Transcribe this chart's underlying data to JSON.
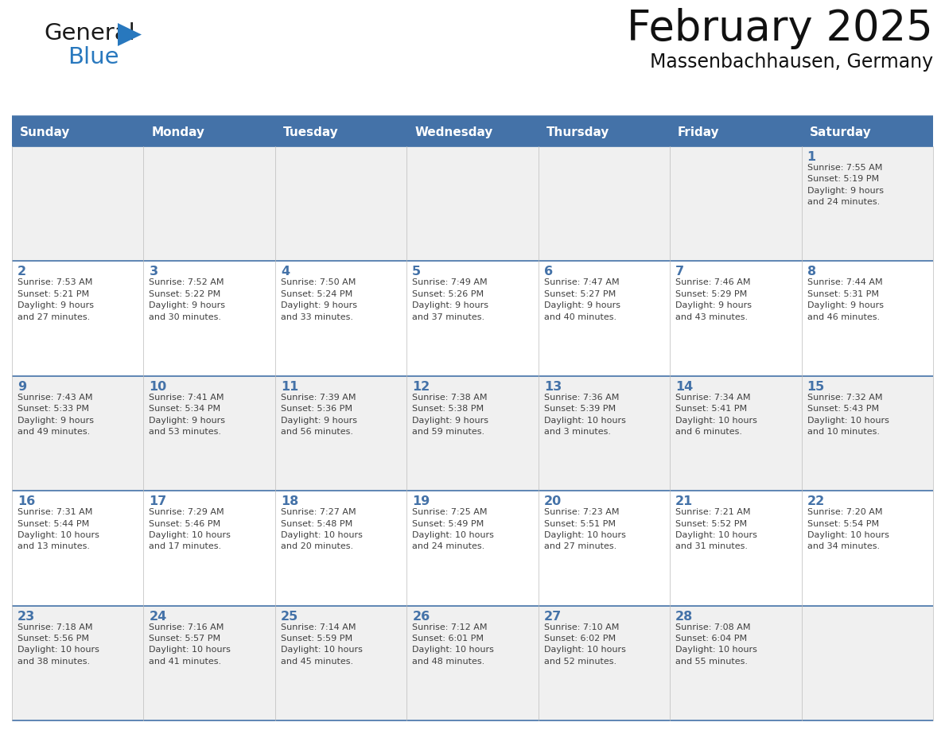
{
  "title": "February 2025",
  "subtitle": "Massenbachhausen, Germany",
  "header_bg": "#4472A8",
  "header_text_color": "#FFFFFF",
  "cell_bg_odd": "#F0F0F0",
  "cell_bg_even": "#FFFFFF",
  "day_number_color": "#4472A8",
  "info_text_color": "#404040",
  "days_of_week": [
    "Sunday",
    "Monday",
    "Tuesday",
    "Wednesday",
    "Thursday",
    "Friday",
    "Saturday"
  ],
  "weeks": [
    [
      {
        "day": null,
        "info": null
      },
      {
        "day": null,
        "info": null
      },
      {
        "day": null,
        "info": null
      },
      {
        "day": null,
        "info": null
      },
      {
        "day": null,
        "info": null
      },
      {
        "day": null,
        "info": null
      },
      {
        "day": 1,
        "info": "Sunrise: 7:55 AM\nSunset: 5:19 PM\nDaylight: 9 hours\nand 24 minutes."
      }
    ],
    [
      {
        "day": 2,
        "info": "Sunrise: 7:53 AM\nSunset: 5:21 PM\nDaylight: 9 hours\nand 27 minutes."
      },
      {
        "day": 3,
        "info": "Sunrise: 7:52 AM\nSunset: 5:22 PM\nDaylight: 9 hours\nand 30 minutes."
      },
      {
        "day": 4,
        "info": "Sunrise: 7:50 AM\nSunset: 5:24 PM\nDaylight: 9 hours\nand 33 minutes."
      },
      {
        "day": 5,
        "info": "Sunrise: 7:49 AM\nSunset: 5:26 PM\nDaylight: 9 hours\nand 37 minutes."
      },
      {
        "day": 6,
        "info": "Sunrise: 7:47 AM\nSunset: 5:27 PM\nDaylight: 9 hours\nand 40 minutes."
      },
      {
        "day": 7,
        "info": "Sunrise: 7:46 AM\nSunset: 5:29 PM\nDaylight: 9 hours\nand 43 minutes."
      },
      {
        "day": 8,
        "info": "Sunrise: 7:44 AM\nSunset: 5:31 PM\nDaylight: 9 hours\nand 46 minutes."
      }
    ],
    [
      {
        "day": 9,
        "info": "Sunrise: 7:43 AM\nSunset: 5:33 PM\nDaylight: 9 hours\nand 49 minutes."
      },
      {
        "day": 10,
        "info": "Sunrise: 7:41 AM\nSunset: 5:34 PM\nDaylight: 9 hours\nand 53 minutes."
      },
      {
        "day": 11,
        "info": "Sunrise: 7:39 AM\nSunset: 5:36 PM\nDaylight: 9 hours\nand 56 minutes."
      },
      {
        "day": 12,
        "info": "Sunrise: 7:38 AM\nSunset: 5:38 PM\nDaylight: 9 hours\nand 59 minutes."
      },
      {
        "day": 13,
        "info": "Sunrise: 7:36 AM\nSunset: 5:39 PM\nDaylight: 10 hours\nand 3 minutes."
      },
      {
        "day": 14,
        "info": "Sunrise: 7:34 AM\nSunset: 5:41 PM\nDaylight: 10 hours\nand 6 minutes."
      },
      {
        "day": 15,
        "info": "Sunrise: 7:32 AM\nSunset: 5:43 PM\nDaylight: 10 hours\nand 10 minutes."
      }
    ],
    [
      {
        "day": 16,
        "info": "Sunrise: 7:31 AM\nSunset: 5:44 PM\nDaylight: 10 hours\nand 13 minutes."
      },
      {
        "day": 17,
        "info": "Sunrise: 7:29 AM\nSunset: 5:46 PM\nDaylight: 10 hours\nand 17 minutes."
      },
      {
        "day": 18,
        "info": "Sunrise: 7:27 AM\nSunset: 5:48 PM\nDaylight: 10 hours\nand 20 minutes."
      },
      {
        "day": 19,
        "info": "Sunrise: 7:25 AM\nSunset: 5:49 PM\nDaylight: 10 hours\nand 24 minutes."
      },
      {
        "day": 20,
        "info": "Sunrise: 7:23 AM\nSunset: 5:51 PM\nDaylight: 10 hours\nand 27 minutes."
      },
      {
        "day": 21,
        "info": "Sunrise: 7:21 AM\nSunset: 5:52 PM\nDaylight: 10 hours\nand 31 minutes."
      },
      {
        "day": 22,
        "info": "Sunrise: 7:20 AM\nSunset: 5:54 PM\nDaylight: 10 hours\nand 34 minutes."
      }
    ],
    [
      {
        "day": 23,
        "info": "Sunrise: 7:18 AM\nSunset: 5:56 PM\nDaylight: 10 hours\nand 38 minutes."
      },
      {
        "day": 24,
        "info": "Sunrise: 7:16 AM\nSunset: 5:57 PM\nDaylight: 10 hours\nand 41 minutes."
      },
      {
        "day": 25,
        "info": "Sunrise: 7:14 AM\nSunset: 5:59 PM\nDaylight: 10 hours\nand 45 minutes."
      },
      {
        "day": 26,
        "info": "Sunrise: 7:12 AM\nSunset: 6:01 PM\nDaylight: 10 hours\nand 48 minutes."
      },
      {
        "day": 27,
        "info": "Sunrise: 7:10 AM\nSunset: 6:02 PM\nDaylight: 10 hours\nand 52 minutes."
      },
      {
        "day": 28,
        "info": "Sunrise: 7:08 AM\nSunset: 6:04 PM\nDaylight: 10 hours\nand 55 minutes."
      },
      {
        "day": null,
        "info": null
      }
    ]
  ],
  "logo_general_color": "#1A1A1A",
  "logo_blue_color": "#2878BE",
  "logo_triangle_color": "#2878BE",
  "divider_color": "#4472A8",
  "border_color": "#BBBBBB",
  "fig_width": 11.88,
  "fig_height": 9.18,
  "dpi": 100
}
